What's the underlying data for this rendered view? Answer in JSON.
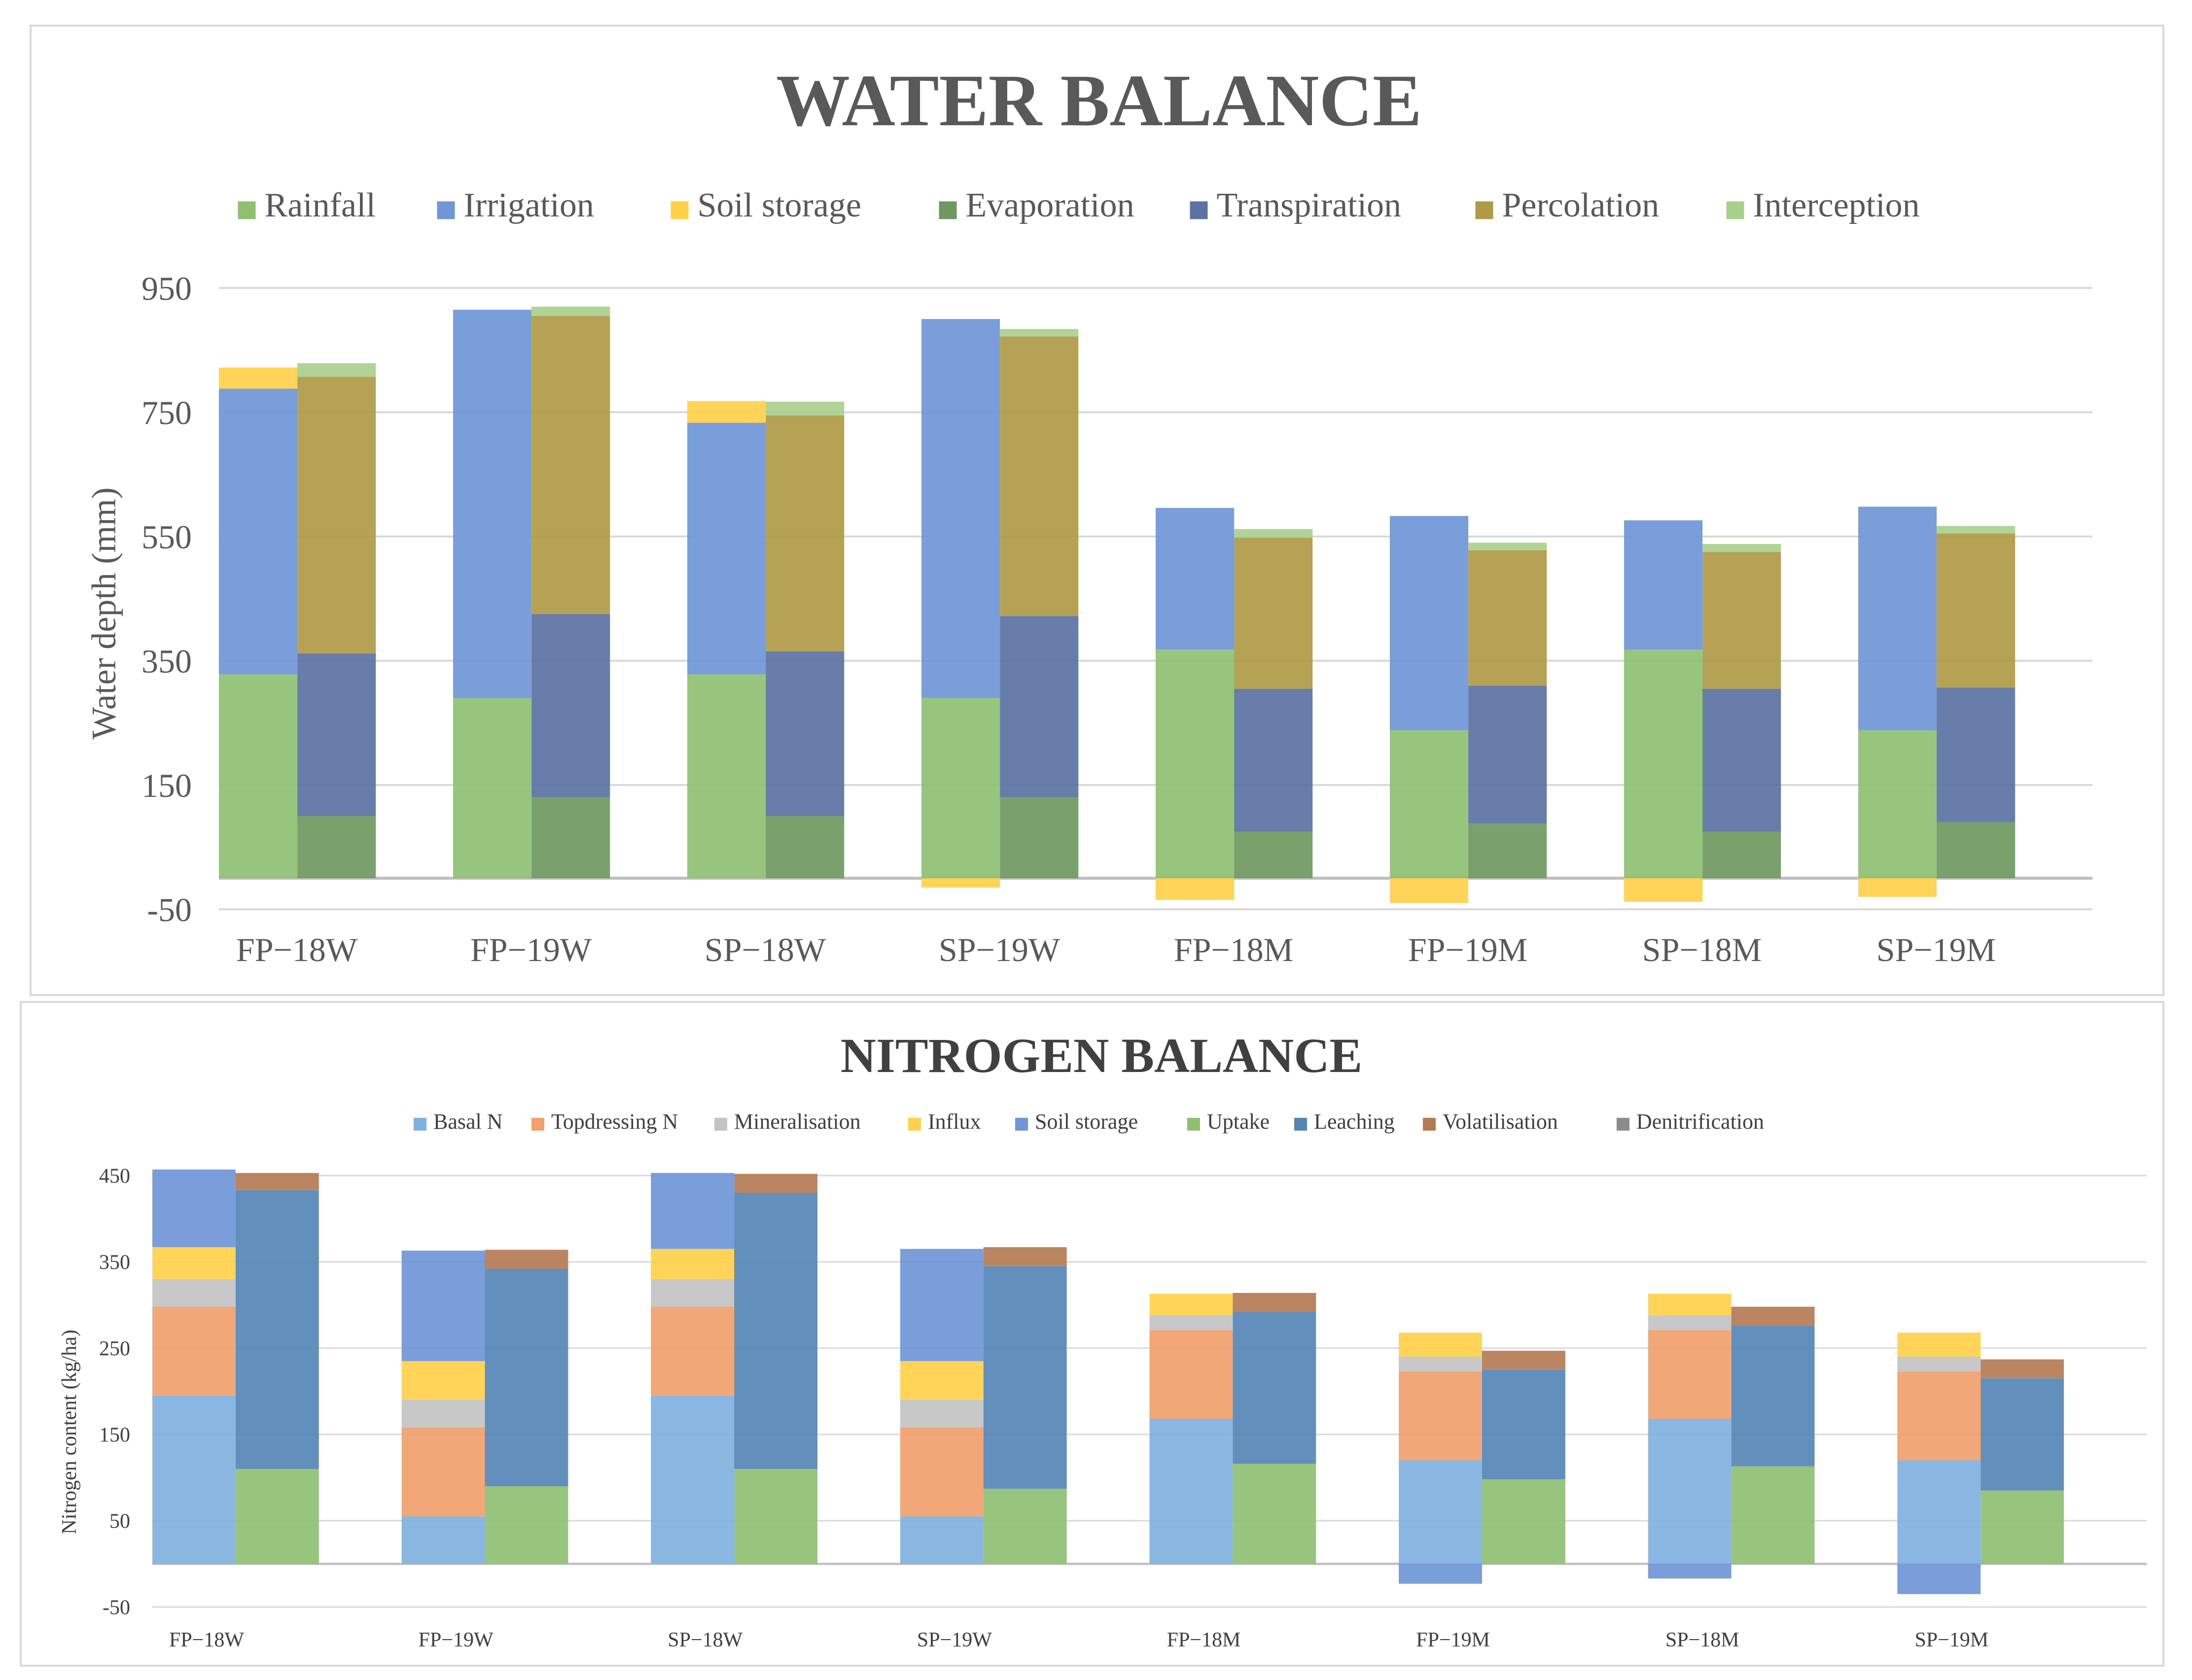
{
  "water": {
    "title": "WATER BALANCE",
    "ylabel": "Water depth (mm)",
    "chart_data": {
      "type": "bar",
      "title": "WATER BALANCE",
      "xlabel": "",
      "ylabel": "Water depth (mm)",
      "ylim": [
        -50,
        950
      ],
      "yticks": [
        950,
        750,
        550,
        350,
        150,
        -50
      ],
      "categories": [
        "FP−18W",
        "FP−19W",
        "SP−18W",
        "SP−19W",
        "FP−18M",
        "FP−19M",
        "SP−18M",
        "SP−19M"
      ],
      "inputs": [
        {
          "name": "Rainfall",
          "color": "#8fc072",
          "values": [
            328,
            290,
            328,
            290,
            368,
            238,
            368,
            238
          ]
        },
        {
          "name": "Irrigation",
          "color": "#6f96d6",
          "values": [
            460,
            625,
            405,
            610,
            228,
            345,
            208,
            360
          ]
        },
        {
          "name": "Soil storage",
          "color": "#ffd04a",
          "values": [
            34,
            0,
            35,
            -15,
            -35,
            -40,
            -38,
            -30
          ]
        }
      ],
      "outputs": [
        {
          "name": "Evaporation",
          "color": "#6f9860",
          "values": [
            100,
            130,
            100,
            130,
            75,
            88,
            75,
            90
          ]
        },
        {
          "name": "Transpiration",
          "color": "#5b72a3",
          "values": [
            262,
            295,
            265,
            292,
            230,
            222,
            230,
            217
          ]
        },
        {
          "name": "Percolation",
          "color": "#b09a45",
          "values": [
            445,
            480,
            380,
            450,
            243,
            218,
            220,
            248
          ]
        },
        {
          "name": "Interception",
          "color": "#a8d08d",
          "values": [
            22,
            15,
            22,
            12,
            14,
            12,
            13,
            12
          ]
        }
      ],
      "legend": [
        "Rainfall",
        "Irrigation",
        "Soil storage",
        "Evaporation",
        "Transpiration",
        "Percolation",
        "Interception"
      ],
      "legend_placement": "top",
      "grid": true
    }
  },
  "nitrogen": {
    "title": "NITROGEN BALANCE",
    "ylabel": "Nitrogen content (kg/ha)",
    "chart_data": {
      "type": "bar",
      "title": "NITROGEN BALANCE",
      "xlabel": "",
      "ylabel": "Nitrogen content (kg/ha)",
      "ylim": [
        -50,
        450
      ],
      "yticks": [
        450,
        350,
        250,
        150,
        50,
        -50
      ],
      "categories": [
        "FP−18W",
        "FP−19W",
        "SP−18W",
        "SP−19W",
        "FP−18M",
        "FP−19M",
        "SP−18M",
        "SP−19M"
      ],
      "inputs": [
        {
          "name": "Basal N",
          "color": "#7fb1e0",
          "values": [
            195,
            55,
            195,
            55,
            168,
            120,
            168,
            120
          ]
        },
        {
          "name": "Topdressing N",
          "color": "#f1a06e",
          "values": [
            103,
            103,
            103,
            103,
            103,
            103,
            103,
            103
          ]
        },
        {
          "name": "Mineralisation",
          "color": "#c3c3c3",
          "values": [
            32,
            32,
            32,
            32,
            17,
            17,
            17,
            17
          ]
        },
        {
          "name": "Influx",
          "color": "#ffd04a",
          "values": [
            37,
            45,
            35,
            45,
            25,
            28,
            25,
            28
          ]
        },
        {
          "name": "Soil storage",
          "color": "#6f96d6",
          "values": [
            90,
            128,
            88,
            130,
            0,
            -23,
            -17,
            -35
          ]
        }
      ],
      "outputs": [
        {
          "name": "Uptake",
          "color": "#8fc072",
          "values": [
            110,
            90,
            110,
            87,
            116,
            98,
            113,
            85
          ]
        },
        {
          "name": "Leaching",
          "color": "#5585b5",
          "values": [
            323,
            252,
            320,
            258,
            176,
            127,
            163,
            130
          ]
        },
        {
          "name": "Volatilisation",
          "color": "#b47b52",
          "values": [
            20,
            22,
            22,
            22,
            22,
            22,
            22,
            22
          ]
        },
        {
          "name": "Denitrification",
          "color": "#8c8c8c",
          "values": [
            0,
            0,
            0,
            0,
            0,
            0,
            0,
            0
          ]
        }
      ],
      "legend": [
        "Basal N",
        "Topdressing N",
        "Mineralisation",
        "Influx",
        "Soil storage",
        "Uptake",
        "Leaching",
        "Volatilisation",
        "Denitrification"
      ],
      "legend_placement": "top",
      "grid": true
    }
  }
}
